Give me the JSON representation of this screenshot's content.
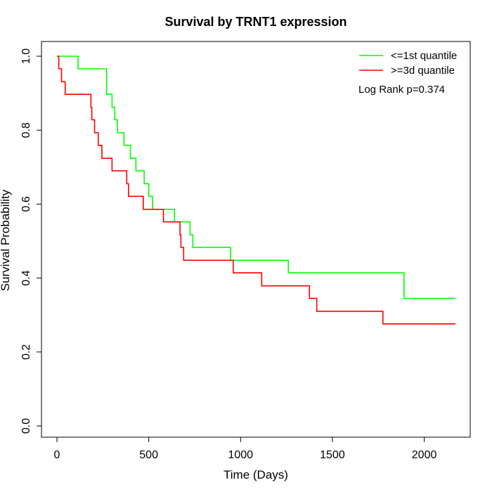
{
  "chart_data": {
    "type": "line",
    "title": "Survival by TRNT1 expression",
    "xlabel": "Time (Days)",
    "ylabel": "Survival Probability",
    "xlim": [
      0,
      2200
    ],
    "ylim": [
      0,
      1
    ],
    "x_ticks": [
      0,
      500,
      1000,
      1500,
      2000
    ],
    "y_ticks": [
      0.0,
      0.2,
      0.4,
      0.6,
      0.8,
      1.0
    ],
    "x_tick_labels": [
      "0",
      "500",
      "1000",
      "1500",
      "2000"
    ],
    "y_tick_labels": [
      "0.0",
      "0.2",
      "0.4",
      "0.6",
      "0.8",
      "1.0"
    ],
    "step": true,
    "grid": false,
    "legend_position": "top-right",
    "annotation": "Log Rank p=0.374",
    "series": [
      {
        "name": "<=1st quantile",
        "color": "#00ff00",
        "x": [
          0,
          115,
          270,
          300,
          315,
          330,
          365,
          400,
          430,
          475,
          500,
          520,
          640,
          725,
          740,
          945,
          1260,
          1890,
          2170
        ],
        "y": [
          1.0,
          0.966,
          0.897,
          0.862,
          0.828,
          0.793,
          0.759,
          0.724,
          0.69,
          0.655,
          0.621,
          0.586,
          0.552,
          0.517,
          0.483,
          0.448,
          0.414,
          0.345,
          0.345
        ]
      },
      {
        "name": ">=3d quantile",
        "color": "#ff0000",
        "x": [
          0,
          10,
          25,
          45,
          185,
          190,
          205,
          225,
          245,
          280,
          300,
          380,
          390,
          470,
          580,
          670,
          675,
          690,
          960,
          1115,
          1375,
          1415,
          1775,
          2170
        ],
        "y": [
          1.0,
          0.966,
          0.931,
          0.897,
          0.862,
          0.828,
          0.793,
          0.759,
          0.724,
          0.724,
          0.69,
          0.655,
          0.621,
          0.586,
          0.552,
          0.517,
          0.483,
          0.448,
          0.414,
          0.379,
          0.345,
          0.31,
          0.276,
          0.276
        ]
      }
    ]
  }
}
